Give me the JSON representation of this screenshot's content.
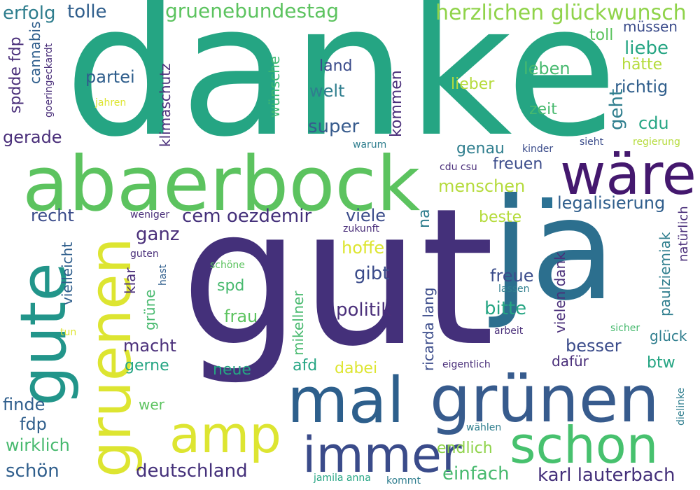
{
  "colors": {
    "background": "#ffffff",
    "palette": [
      "#44307a",
      "#3a4b8a",
      "#2f648e",
      "#267a8e",
      "#20908c",
      "#25a583",
      "#47b96e",
      "#7ccd56",
      "#b5db3c",
      "#dde531"
    ]
  },
  "words": {
    "danke": "danke",
    "gut": "gut",
    "ja": "ja",
    "abaerbock": "abaerbock",
    "waere": "wäre",
    "gute": "gute",
    "gruenen_rot": "gruenen",
    "gruenen": "grünen",
    "mal": "mal",
    "amp": "amp",
    "immer": "immer",
    "schon": "schon",
    "herzlichen": "herzlichen glückwunsch",
    "gruenebundestag": "gruenebundestag",
    "erfolg": "erfolg",
    "tolle": "tolle",
    "spdde_fdp": "spdde fdp",
    "cannabis": "cannabis",
    "goeringeckardt": "goeringeckardt",
    "jahren": "jahren",
    "klimaschutz": "klimaschutz",
    "partei": "partei",
    "wuensche": "wünsche",
    "land": "land",
    "welt": "welt",
    "kommen": "kommen",
    "super": "super",
    "lieber": "lieber",
    "leben": "leben",
    "zeit": "zeit",
    "toll": "toll",
    "muessen": "müssen",
    "liebe": "liebe",
    "haette": "hätte",
    "richtig": "richtig",
    "geht": "geht",
    "cdu": "cdu",
    "sieht": "sieht",
    "regierung": "regierung",
    "kinder": "kinder",
    "genau": "genau",
    "freuen": "freuen",
    "cdu_csu": "cdu csu",
    "warum": "warum",
    "gerade": "gerade",
    "menschen": "menschen",
    "legalisierung": "legalisierung",
    "recht": "recht",
    "weniger": "weniger",
    "cem": "cem oezdemir",
    "viele": "viele",
    "na": "na",
    "zukunft": "zukunft",
    "beste": "beste",
    "paulziemiak": "paulziemiak",
    "natuerlich": "natürlich",
    "ganz": "ganz",
    "hoffe": "hoffe",
    "guten": "guten",
    "vielleicht": "vielleicht",
    "schoene": "schöne",
    "spd": "spd",
    "gibt": "gibt",
    "freue": "freue",
    "lassen": "lassen",
    "ricarda": "ricarda lang",
    "vielen_dank": "vielen dank",
    "klar": "klar",
    "hast": "hast",
    "gruene": "grüne",
    "mikellner": "mikellner",
    "politik": "politik",
    "bitte": "bitte",
    "frau": "frau",
    "sicher": "sicher",
    "glueck": "glück",
    "arbeit": "arbeit",
    "tun": "tun",
    "macht": "macht",
    "besser": "besser",
    "dafuer": "dafür",
    "btw": "btw",
    "eigentlich": "eigentlich",
    "gerne": "gerne",
    "afd": "afd",
    "neue": "neue",
    "dabei": "dabei",
    "finde": "finde",
    "wer": "wer",
    "fdp": "fdp",
    "dielinke": "dielinke",
    "waehlen": "wählen",
    "wirklich": "wirklich",
    "endlich": "endlich",
    "schoen": "schön",
    "deutschland": "deutschland",
    "einfach": "einfach",
    "karl": "karl lauterbach",
    "jamila": "jamila anna",
    "kommt": "kommt"
  }
}
